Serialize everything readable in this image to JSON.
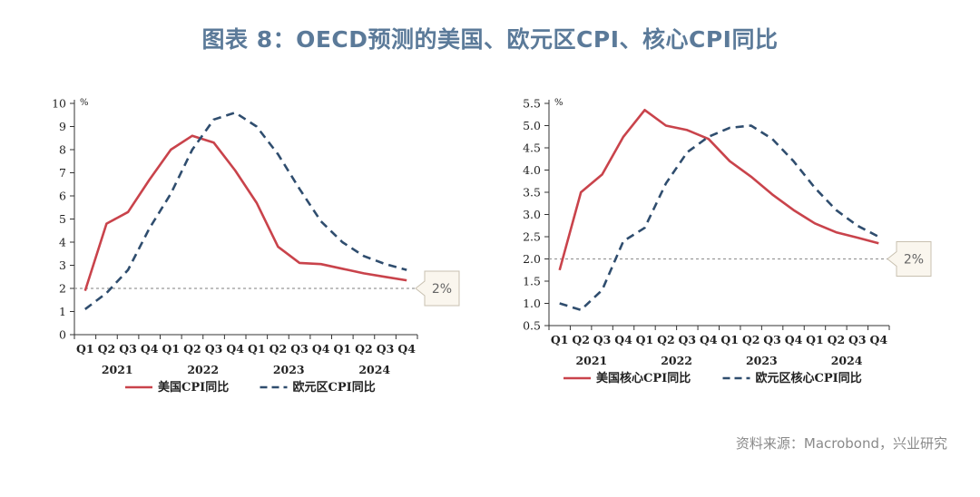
{
  "title": "图表 8：OECD预测的美国、欧元区CPI、核心CPI同比",
  "source": "资料来源：Macrobond，兴业研究",
  "colors": {
    "us": "#c9434b",
    "ea": "#2f4d6e",
    "ref": "#999999",
    "title": "#5b7a99"
  },
  "chart_data": [
    {
      "type": "line",
      "unit": "%",
      "ylim": [
        0,
        10
      ],
      "yticks": [
        "0",
        "1",
        "2",
        "3",
        "4",
        "5",
        "6",
        "7",
        "8",
        "9",
        "10"
      ],
      "quarters": [
        "Q1",
        "Q2",
        "Q3",
        "Q4",
        "Q1",
        "Q2",
        "Q3",
        "Q4",
        "Q1",
        "Q2",
        "Q3",
        "Q4",
        "Q1",
        "Q2",
        "Q3",
        "Q4"
      ],
      "years": [
        "2021",
        "2022",
        "2023",
        "2024"
      ],
      "reference": {
        "value": 2,
        "label": "2%"
      },
      "series": [
        {
          "name": "美国CPI同比",
          "style": "solid",
          "values": [
            1.9,
            4.8,
            5.3,
            6.7,
            8.0,
            8.6,
            8.3,
            7.1,
            5.7,
            3.8,
            3.1,
            3.05,
            2.85,
            2.65,
            2.5,
            2.35
          ]
        },
        {
          "name": "欧元区CPI同比",
          "style": "dashed",
          "values": [
            1.1,
            1.8,
            2.8,
            4.6,
            6.1,
            8.0,
            9.3,
            9.6,
            9.0,
            7.8,
            6.3,
            4.9,
            4.0,
            3.4,
            3.05,
            2.8
          ]
        }
      ]
    },
    {
      "type": "line",
      "unit": "%",
      "ylim": [
        0.5,
        5.5
      ],
      "yticks": [
        "0.5",
        "1.0",
        "1.5",
        "2.0",
        "2.5",
        "3.0",
        "3.5",
        "4.0",
        "4.5",
        "5.0",
        "5.5"
      ],
      "quarters": [
        "Q1",
        "Q2",
        "Q3",
        "Q4",
        "Q1",
        "Q2",
        "Q3",
        "Q4",
        "Q1",
        "Q2",
        "Q3",
        "Q4",
        "Q1",
        "Q2",
        "Q3",
        "Q4"
      ],
      "years": [
        "2021",
        "2022",
        "2023",
        "2024"
      ],
      "reference": {
        "value": 2,
        "label": "2%"
      },
      "series": [
        {
          "name": "美国核心CPI同比",
          "style": "solid",
          "values": [
            1.75,
            3.5,
            3.9,
            4.75,
            5.35,
            5.0,
            4.9,
            4.7,
            4.2,
            3.85,
            3.45,
            3.1,
            2.8,
            2.6,
            2.48,
            2.35
          ]
        },
        {
          "name": "欧元区核心CPI同比",
          "style": "dashed",
          "values": [
            1.0,
            0.85,
            1.3,
            2.4,
            2.7,
            3.7,
            4.4,
            4.75,
            4.95,
            5.0,
            4.7,
            4.2,
            3.6,
            3.1,
            2.75,
            2.5
          ]
        }
      ]
    }
  ]
}
